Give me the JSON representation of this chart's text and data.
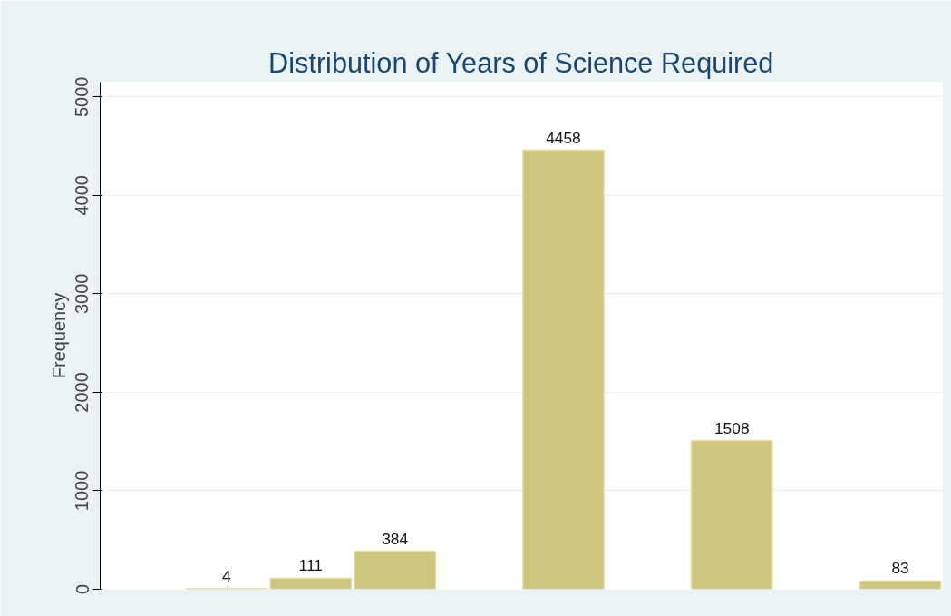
{
  "chart_data": {
    "type": "bar",
    "title": "Distribution of Years of Science Required",
    "ylabel": "Frequency",
    "categories": [
      null,
      null,
      null,
      null,
      null,
      null,
      null,
      null,
      null,
      null
    ],
    "values": [
      null,
      4,
      111,
      384,
      null,
      4458,
      null,
      1508,
      null,
      83
    ],
    "color": "#cdc47e",
    "ylim": [
      0,
      5150
    ],
    "yticks": [
      0,
      1000,
      2000,
      3000,
      4000,
      5000
    ],
    "grid": "y",
    "tick_labels": "y",
    "data_labels": true
  }
}
